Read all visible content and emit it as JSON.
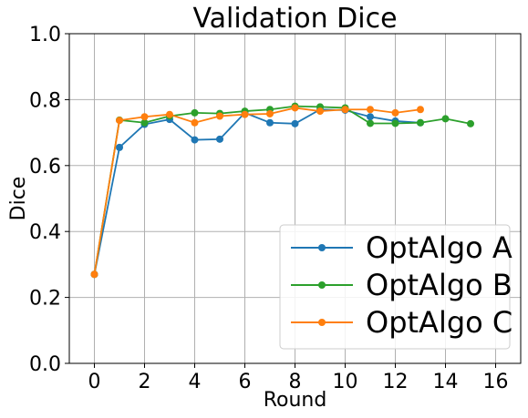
{
  "chart_data": {
    "type": "line",
    "title": "Validation Dice",
    "xlabel": "Round",
    "ylabel": "Dice",
    "xlim": [
      -1,
      17
    ],
    "ylim": [
      0,
      1
    ],
    "xticks": [
      0,
      2,
      4,
      6,
      8,
      10,
      12,
      14,
      16
    ],
    "yticks": [
      0.0,
      0.2,
      0.4,
      0.6,
      0.8,
      1.0
    ],
    "ytick_labels": [
      "0.0",
      "0.2",
      "0.4",
      "0.6",
      "0.8",
      "1.0"
    ],
    "grid": true,
    "legend_position": "bottom-right",
    "series": [
      {
        "name": "OptAlgo A",
        "color": "#1f77b4",
        "x": [
          0,
          1,
          2,
          3,
          4,
          5,
          6,
          7,
          8,
          9,
          10,
          11,
          12,
          13
        ],
        "values": [
          0.27,
          0.655,
          0.725,
          0.74,
          0.678,
          0.68,
          0.76,
          0.73,
          0.727,
          0.77,
          0.768,
          0.748,
          0.735,
          0.73
        ]
      },
      {
        "name": "OptAlgo B",
        "color": "#2ca02c",
        "x": [
          0,
          1,
          2,
          3,
          4,
          5,
          6,
          7,
          8,
          9,
          10,
          11,
          12,
          13,
          14,
          15
        ],
        "values": [
          0.27,
          0.738,
          0.73,
          0.75,
          0.76,
          0.758,
          0.765,
          0.77,
          0.78,
          0.778,
          0.775,
          0.728,
          0.728,
          0.73,
          0.742,
          0.727
        ]
      },
      {
        "name": "OptAlgo C",
        "color": "#ff7f0e",
        "x": [
          0,
          1,
          2,
          3,
          4,
          5,
          6,
          7,
          8,
          9,
          10,
          11,
          12,
          13
        ],
        "values": [
          0.27,
          0.737,
          0.748,
          0.755,
          0.73,
          0.75,
          0.755,
          0.757,
          0.775,
          0.765,
          0.77,
          0.77,
          0.76,
          0.77
        ]
      }
    ]
  }
}
